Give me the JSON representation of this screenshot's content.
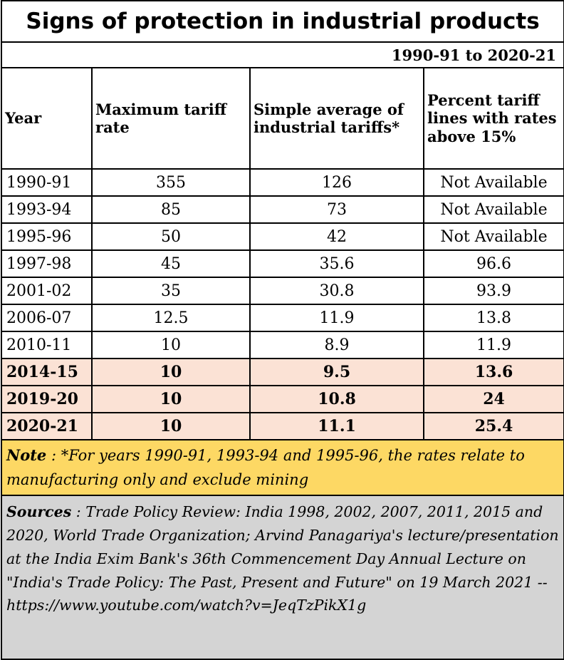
{
  "title": "Signs of protection in industrial products",
  "period": "1990-91 to 2020-21",
  "headers": {
    "year": "Year",
    "max_tariff": "Maximum tariff rate",
    "simple_avg": "Simple average of industrial tariffs*",
    "percent_lines": "Percent tariff lines with rates above 15%"
  },
  "rows": [
    {
      "year": "1990-91",
      "max": "355",
      "avg": "126",
      "pct": "Not Available"
    },
    {
      "year": "1993-94",
      "max": "85",
      "avg": "73",
      "pct": "Not Available"
    },
    {
      "year": "1995-96",
      "max": "50",
      "avg": "42",
      "pct": "Not Available"
    },
    {
      "year": "1997-98",
      "max": "45",
      "avg": "35.6",
      "pct": "96.6"
    },
    {
      "year": "2001-02",
      "max": "35",
      "avg": "30.8",
      "pct": "93.9"
    },
    {
      "year": "2006-07",
      "max": "12.5",
      "avg": "11.9",
      "pct": "13.8"
    },
    {
      "year": "2010-11",
      "max": "10",
      "avg": "8.9",
      "pct": "11.9"
    },
    {
      "year": "2014-15",
      "max": "10",
      "avg": "9.5",
      "pct": "13.6"
    },
    {
      "year": "2019-20",
      "max": "10",
      "avg": "10.8",
      "pct": "24"
    },
    {
      "year": "2020-21",
      "max": "10",
      "avg": "11.1",
      "pct": "25.4"
    }
  ],
  "note": {
    "label": "Note",
    "text": " : *For years 1990-91, 1993-94 and 1995-96, the rates relate to manufacturing only and exclude mining"
  },
  "sources": {
    "label": "Sources",
    "text": " : Trade Policy Review: India 1998, 2002, 2007, 2011, 2015 and 2020, World Trade Organization; Arvind Panagariya's lecture/presentation at the India Exim Bank's 36th Commencement Day Annual Lecture on \"India's Trade Policy: The Past, Present and Future\" on 19 March 2021 -- https://www.youtube.com/watch?v=JeqTzPikX1g"
  },
  "colors": {
    "highlight_row": "#fbe2d5",
    "note_bg": "#fdd864",
    "sources_bg": "#d4d4d4"
  }
}
